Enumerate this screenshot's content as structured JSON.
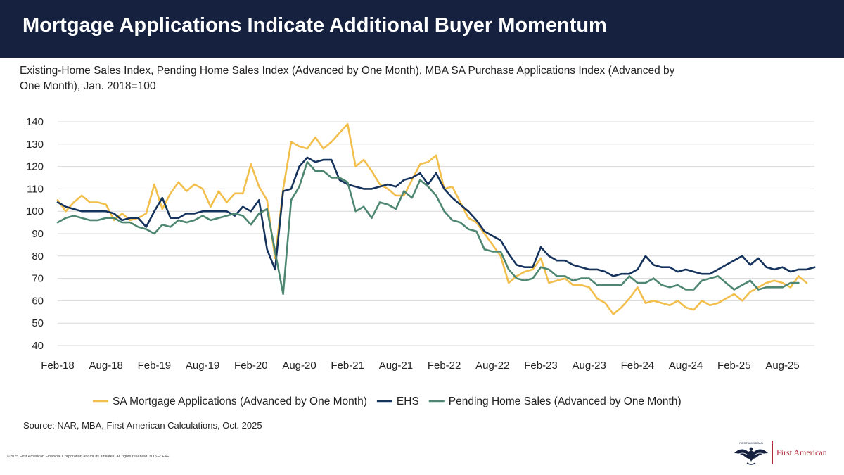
{
  "header": {
    "title": "Mortgage Applications Indicate Additional Buyer Momentum"
  },
  "subtitle": "Existing-Home Sales Index, Pending Home Sales Index (Advanced by One Month), MBA SA Purchase Applications Index (Advanced by One Month), Jan. 2018=100",
  "source": "Source: NAR, MBA, First American Calculations, Oct. 2025",
  "copyright": "©2025 First American Financial Corporation and/or its affiliates. All rights reserved. NYSE: FAF",
  "logo": {
    "text": "First American",
    "eagle_text": "FIRST AMERICAN",
    "icon": "eagle-icon"
  },
  "colors": {
    "header_bg": "#15213f",
    "sa_mortgage": "#f2be4c",
    "ehs": "#15335c",
    "pending": "#4e8771",
    "grid": "#d9d9d9",
    "brand_red": "#b0273a"
  },
  "chart_data": {
    "type": "line",
    "start": "Feb-18",
    "x_ticks": [
      "Feb-18",
      "Aug-18",
      "Feb-19",
      "Aug-19",
      "Feb-20",
      "Aug-20",
      "Feb-21",
      "Aug-21",
      "Feb-22",
      "Aug-22",
      "Feb-23",
      "Aug-23",
      "Feb-24",
      "Aug-24",
      "Feb-25",
      "Aug-25"
    ],
    "y_ticks": [
      40,
      50,
      60,
      70,
      80,
      90,
      100,
      110,
      120,
      130,
      140
    ],
    "ylim": [
      40,
      140
    ],
    "xlabel": "",
    "ylabel": "",
    "grid": "horizontal",
    "legend": "bottom",
    "series": [
      {
        "name": "SA Mortgage Applications (Advanced by One Month)",
        "color": "#f2be4c",
        "values": [
          105,
          100,
          104,
          107,
          104,
          104,
          103,
          96,
          99,
          96,
          97,
          99,
          112,
          101,
          108,
          113,
          109,
          112,
          110,
          102,
          109,
          104,
          108,
          108,
          121,
          111,
          105,
          79,
          110,
          131,
          129,
          128,
          133,
          128,
          131,
          135,
          139,
          120,
          123,
          118,
          112,
          110,
          107,
          107,
          114,
          121,
          122,
          125,
          110,
          111,
          104,
          97,
          95,
          90,
          85,
          80,
          68,
          71,
          73,
          74,
          79,
          68,
          69,
          70,
          67,
          67,
          66,
          61,
          59,
          54,
          57,
          61,
          66,
          59,
          60,
          59,
          58,
          60,
          57,
          56,
          60,
          58,
          59,
          61,
          63,
          60,
          64,
          66,
          68,
          69,
          68,
          66,
          71,
          68
        ]
      },
      {
        "name": "EHS",
        "color": "#15335c",
        "values": [
          104,
          102,
          101,
          100,
          100,
          100,
          100,
          99,
          96,
          97,
          97,
          93,
          100,
          106,
          97,
          97,
          99,
          99,
          100,
          100,
          100,
          100,
          98,
          102,
          100,
          105,
          83,
          74,
          109,
          110,
          120,
          124,
          122,
          123,
          123,
          114,
          112,
          111,
          110,
          110,
          111,
          112,
          111,
          114,
          115,
          117,
          112,
          117,
          110,
          106,
          103,
          100,
          96,
          91,
          89,
          87,
          81,
          76,
          75,
          75,
          84,
          80,
          78,
          78,
          76,
          75,
          74,
          74,
          73,
          71,
          72,
          72,
          74,
          80,
          76,
          75,
          75,
          73,
          74,
          73,
          72,
          72,
          74,
          76,
          78,
          80,
          76,
          79,
          75,
          74,
          75,
          73,
          74,
          74,
          75
        ]
      },
      {
        "name": "Pending Home Sales (Advanced by One Month)",
        "color": "#4e8771",
        "values": [
          95,
          97,
          98,
          97,
          96,
          96,
          97,
          97,
          95,
          95,
          93,
          92,
          90,
          94,
          93,
          96,
          95,
          96,
          98,
          96,
          97,
          98,
          99,
          98,
          94,
          99,
          101,
          82,
          63,
          105,
          111,
          122,
          118,
          118,
          115,
          115,
          113,
          100,
          102,
          97,
          104,
          103,
          101,
          109,
          106,
          114,
          111,
          107,
          100,
          96,
          95,
          92,
          91,
          83,
          82,
          82,
          74,
          70,
          69,
          70,
          75,
          74,
          71,
          71,
          69,
          70,
          70,
          67,
          67,
          67,
          67,
          71,
          68,
          68,
          70,
          67,
          66,
          67,
          65,
          65,
          69,
          70,
          71,
          68,
          65,
          67,
          69,
          65,
          66,
          66,
          66,
          68,
          68
        ]
      }
    ]
  }
}
